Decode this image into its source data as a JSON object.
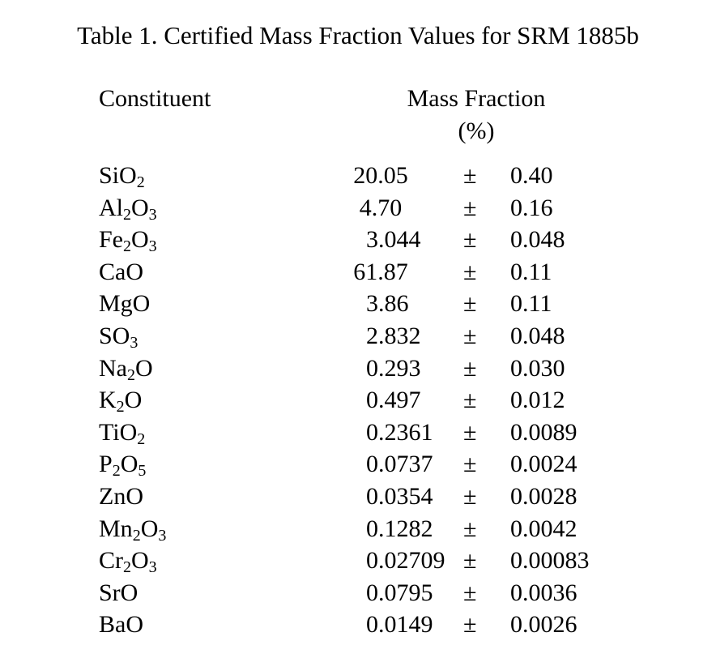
{
  "title": "Table 1.  Certified Mass Fraction Values for SRM 1885b",
  "headers": {
    "constituent": "Constituent",
    "mass_fraction": "Mass Fraction",
    "unit": "(%)"
  },
  "pm_symbol": "±",
  "rows": [
    {
      "name": [
        [
          "Si",
          ""
        ],
        [
          "O",
          "2"
        ]
      ],
      "value": "20.05",
      "uncertainty": "0.40",
      "align": "center"
    },
    {
      "name": [
        [
          "Al",
          "2"
        ],
        [
          "O",
          "3"
        ]
      ],
      "value": "4.70",
      "uncertainty": "0.16",
      "align": "center"
    },
    {
      "name": [
        [
          "Fe",
          "2"
        ],
        [
          "O",
          "3"
        ]
      ],
      "value": "3.044",
      "uncertainty": "0.048",
      "align": "left"
    },
    {
      "name": [
        [
          "CaO",
          ""
        ]
      ],
      "value": "61.87",
      "uncertainty": "0.11",
      "align": "center"
    },
    {
      "name": [
        [
          "MgO",
          ""
        ]
      ],
      "value": "3.86",
      "uncertainty": "0.11",
      "align": "left"
    },
    {
      "name": [
        [
          "SO",
          "3"
        ]
      ],
      "value": "2.832",
      "uncertainty": "0.048",
      "align": "left"
    },
    {
      "name": [
        [
          "Na",
          "2"
        ],
        [
          "O",
          ""
        ]
      ],
      "value": "0.293",
      "uncertainty": "0.030",
      "align": "left"
    },
    {
      "name": [
        [
          "K",
          "2"
        ],
        [
          "O",
          ""
        ]
      ],
      "value": "0.497",
      "uncertainty": "0.012",
      "align": "left"
    },
    {
      "name": [
        [
          "TiO",
          "2"
        ]
      ],
      "value": "0.2361",
      "uncertainty": "0.0089",
      "align": "left"
    },
    {
      "name": [
        [
          "P",
          "2"
        ],
        [
          "O",
          "5"
        ]
      ],
      "value": "0.0737",
      "uncertainty": "0.0024",
      "align": "left"
    },
    {
      "name": [
        [
          "ZnO",
          ""
        ]
      ],
      "value": "0.0354",
      "uncertainty": "0.0028",
      "align": "left"
    },
    {
      "name": [
        [
          "Mn",
          "2"
        ],
        [
          "O",
          "3"
        ]
      ],
      "value": "0.1282",
      "uncertainty": "0.0042",
      "align": "left"
    },
    {
      "name": [
        [
          "Cr",
          "2"
        ],
        [
          "O",
          "3"
        ]
      ],
      "value": "0.02709",
      "uncertainty": "0.00083",
      "align": "left"
    },
    {
      "name": [
        [
          "SrO",
          ""
        ]
      ],
      "value": "0.0795",
      "uncertainty": "0.0036",
      "align": "left"
    },
    {
      "name": [
        [
          "BaO",
          ""
        ]
      ],
      "value": "0.0149",
      "uncertainty": "0.0026",
      "align": "left"
    }
  ]
}
